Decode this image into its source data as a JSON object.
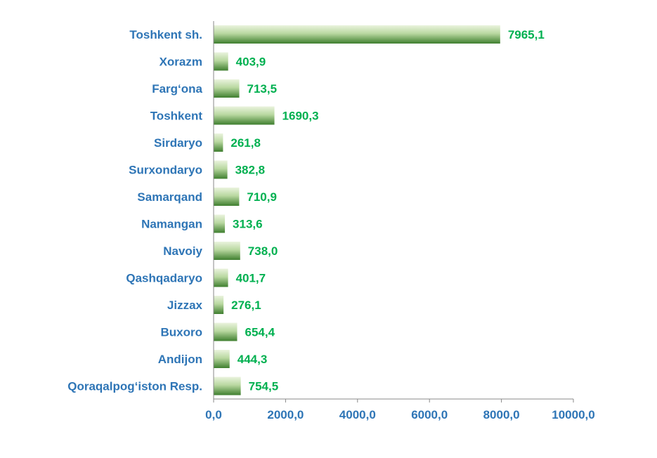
{
  "chart_data": {
    "type": "bar",
    "orientation": "horizontal",
    "categories": [
      "Toshkent sh.",
      "Xorazm",
      "Farg‘ona",
      "Toshkent",
      "Sirdaryo",
      "Surxondaryo",
      "Samarqand",
      "Namangan",
      "Navoiy",
      "Qashqadaryo",
      "Jizzax",
      "Buxoro",
      "Andijon",
      "Qoraqalpog‘iston Resp."
    ],
    "values": [
      7965.1,
      403.9,
      713.5,
      1690.3,
      261.8,
      382.8,
      710.9,
      313.6,
      738.0,
      401.7,
      276.1,
      654.4,
      444.3,
      754.5
    ],
    "value_labels": [
      "7965,1",
      "403,9",
      "713,5",
      "1690,3",
      "261,8",
      "382,8",
      "710,9",
      "313,6",
      "738,0",
      "401,7",
      "276,1",
      "654,4",
      "444,3",
      "754,5"
    ],
    "xlim": [
      0,
      10000
    ],
    "x_ticks": [
      0,
      2000,
      4000,
      6000,
      8000,
      10000
    ],
    "x_tick_labels": [
      "0,0",
      "2000,0",
      "4000,0",
      "6000,0",
      "8000,0",
      "10000,0"
    ],
    "title": "",
    "xlabel": "",
    "ylabel": "",
    "grid": false,
    "legend": "none",
    "colors": {
      "bar_dark": "#3F7F2F",
      "bar_light": "#EAF3DE",
      "category_text": "#2E75B6",
      "value_text": "#00B050",
      "axis": "#888888"
    }
  }
}
